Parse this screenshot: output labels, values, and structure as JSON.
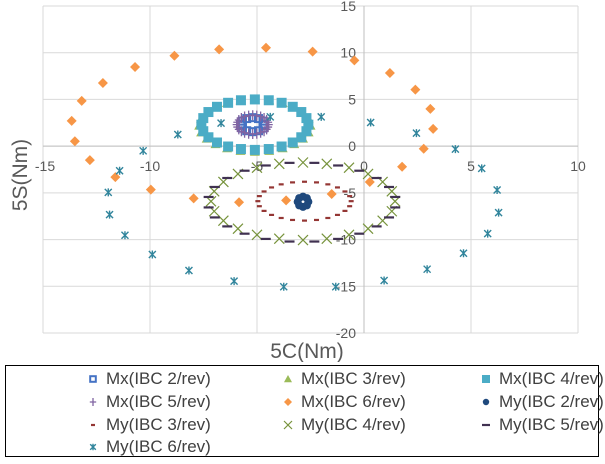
{
  "chart_data": {
    "type": "scatter",
    "xlabel": "5C(Nm)",
    "ylabel": "5S(Nm)",
    "xlim": [
      -15,
      10
    ],
    "ylim": [
      -20,
      15
    ],
    "xticks": [
      "-15",
      "-10",
      "-5",
      "0",
      "5",
      "10"
    ],
    "yticks": [
      "15",
      "10",
      "5",
      "0",
      "-5",
      "-10",
      "-15",
      "-20"
    ],
    "grid": true,
    "legend": "bottom",
    "series": [
      {
        "name": "Mx(IBC 2/rev)",
        "marker": "open-square",
        "color": "#4472c4",
        "x": [
          -4.65,
          -4.72,
          -4.93,
          -5.2,
          -5.48,
          -5.68,
          -5.75,
          -5.68,
          -5.48,
          -5.2,
          -4.93,
          -4.72
        ],
        "y": [
          2.3,
          2.68,
          2.95,
          3.05,
          2.95,
          2.68,
          2.3,
          1.93,
          1.65,
          1.55,
          1.65,
          1.93
        ]
      },
      {
        "name": "Mx(IBC 3/rev)",
        "marker": "triangle",
        "color": "#9bbb59",
        "x": [
          -2.5,
          -2.59,
          -2.85,
          -3.26,
          -3.8,
          -4.43,
          -5.1,
          -5.77,
          -6.4,
          -6.94,
          -7.35,
          -7.61,
          -7.7,
          -7.61,
          -7.35,
          -6.94,
          -6.4,
          -5.77,
          -5.1,
          -4.43,
          -3.8,
          -3.26,
          -2.85,
          -2.59
        ],
        "y": [
          2.2,
          2.93,
          3.6,
          4.18,
          4.62,
          4.9,
          5.0,
          4.9,
          4.62,
          4.18,
          3.6,
          2.93,
          2.2,
          1.47,
          0.8,
          0.22,
          -0.22,
          -0.5,
          -0.6,
          -0.5,
          -0.22,
          0.22,
          0.8,
          1.47
        ]
      },
      {
        "name": "Mx(IBC 4/rev)",
        "marker": "square",
        "color": "#4bacc6",
        "x": [
          -2.6,
          -2.69,
          -2.93,
          -3.33,
          -3.85,
          -4.45,
          -5.1,
          -5.75,
          -6.35,
          -6.87,
          -7.27,
          -7.51,
          -7.6,
          -7.51,
          -7.27,
          -6.87,
          -6.35,
          -5.75,
          -5.1,
          -4.45,
          -3.85,
          -3.33,
          -2.93,
          -2.69
        ],
        "y": [
          2.3,
          3.0,
          3.65,
          4.21,
          4.64,
          4.91,
          5.0,
          4.91,
          4.64,
          4.21,
          3.65,
          3.0,
          2.3,
          1.6,
          0.95,
          0.39,
          -0.04,
          -0.31,
          -0.4,
          -0.31,
          -0.04,
          0.39,
          0.95,
          1.6
        ]
      },
      {
        "name": "Mx(IBC 5/rev)",
        "marker": "plus",
        "color": "#8064a2",
        "x": [
          -4.45,
          -4.48,
          -4.55,
          -4.67,
          -4.83,
          -5.01,
          -5.2,
          -5.39,
          -5.58,
          -5.73,
          -5.85,
          -5.92,
          -5.95,
          -5.92,
          -5.85,
          -5.73,
          -5.58,
          -5.39,
          -5.2,
          -5.01,
          -4.83,
          -4.67,
          -4.55,
          -4.48
        ],
        "y": [
          2.3,
          2.56,
          2.8,
          3.01,
          3.17,
          3.27,
          3.3,
          3.27,
          3.17,
          3.01,
          2.8,
          2.56,
          2.3,
          2.04,
          1.8,
          1.59,
          1.43,
          1.33,
          1.3,
          1.33,
          1.43,
          1.59,
          1.8,
          2.04
        ]
      },
      {
        "name": "Mx(IBC 6/rev)",
        "marker": "diamond",
        "color": "#f79646",
        "x": [
          -4.58,
          -2.4,
          -0.45,
          1.21,
          2.4,
          3.1,
          3.23,
          2.79,
          1.78,
          0.27,
          -1.51,
          -3.64,
          -5.84,
          -7.96,
          -9.96,
          -11.62,
          -12.81,
          -13.51,
          -13.66,
          -13.19,
          -12.2,
          -10.7,
          -8.86,
          -6.77
        ],
        "y": [
          10.53,
          10.11,
          9.18,
          7.83,
          6.05,
          3.99,
          1.85,
          -0.28,
          -2.21,
          -3.84,
          -5.12,
          -5.8,
          -6.01,
          -5.59,
          -4.66,
          -3.31,
          -1.49,
          0.53,
          2.7,
          4.84,
          6.76,
          8.47,
          9.68,
          10.36
        ]
      },
      {
        "name": "My(IBC 2/rev)",
        "marker": "circle",
        "color": "#1f497d",
        "x": [
          -2.6,
          -2.67,
          -2.85,
          -3.03,
          -3.1,
          -3.03,
          -2.85,
          -2.67
        ],
        "y": [
          -5.95,
          -5.56,
          -5.4,
          -5.56,
          -5.95,
          -6.34,
          -6.5,
          -6.34
        ]
      },
      {
        "name": "My(IBC 3/rev)",
        "marker": "short-dash",
        "color": "#943634",
        "x": [
          -0.6,
          -0.67,
          -0.89,
          -1.24,
          -1.69,
          -2.22,
          -2.78,
          -3.34,
          -3.87,
          -4.32,
          -4.67,
          -4.89,
          -4.96,
          -4.89,
          -4.67,
          -4.32,
          -3.87,
          -3.34,
          -2.78,
          -2.22,
          -1.69,
          -1.24,
          -0.89,
          -0.67
        ],
        "y": [
          -5.89,
          -5.35,
          -4.85,
          -4.42,
          -4.09,
          -3.88,
          -3.81,
          -3.88,
          -4.09,
          -4.42,
          -4.85,
          -5.35,
          -5.89,
          -6.43,
          -6.93,
          -7.36,
          -7.69,
          -7.9,
          -7.97,
          -7.9,
          -7.69,
          -7.36,
          -6.93,
          -6.43
        ]
      },
      {
        "name": "My(IBC 4/rev)",
        "marker": "x",
        "color": "#77933c",
        "x": [
          1.45,
          1.3,
          0.87,
          0.19,
          -0.7,
          -1.74,
          -2.85,
          -3.96,
          -5.0,
          -5.89,
          -6.57,
          -7.0,
          -7.15,
          -7.0,
          -6.57,
          -5.89,
          -5.0,
          -3.96,
          -2.85,
          -1.74,
          -0.7,
          0.19,
          0.87,
          1.3
        ],
        "y": [
          -5.9,
          -4.83,
          -3.83,
          -2.97,
          -2.31,
          -1.89,
          -1.75,
          -1.89,
          -2.31,
          -2.97,
          -3.83,
          -4.83,
          -5.9,
          -6.97,
          -7.98,
          -8.83,
          -9.49,
          -9.91,
          -10.05,
          -9.91,
          -9.49,
          -8.83,
          -7.98,
          -6.97
        ]
      },
      {
        "name": "My(IBC 5/rev)",
        "marker": "long-dash",
        "color": "#403151",
        "x": [
          1.46,
          1.17,
          0.59,
          -0.22,
          -1.21,
          -2.32,
          -3.48,
          -4.59,
          -5.58,
          -6.39,
          -6.97,
          -7.26,
          -7.26,
          -6.97,
          -6.39,
          -5.58,
          -4.59,
          -3.48,
          -2.32,
          -1.21,
          -0.22,
          0.59,
          1.17,
          1.46
        ],
        "y": [
          -5.44,
          -4.37,
          -3.41,
          -2.63,
          -2.07,
          -1.79,
          -1.79,
          -2.07,
          -2.63,
          -3.41,
          -4.37,
          -5.44,
          -6.56,
          -7.63,
          -8.59,
          -9.37,
          -9.93,
          -10.21,
          -10.21,
          -9.93,
          -9.37,
          -8.59,
          -7.63,
          -6.56
        ]
      },
      {
        "name": "My(IBC 6/rev)",
        "marker": "asterisk",
        "color": "#31859c",
        "x": [
          -4.38,
          -2.0,
          0.31,
          2.45,
          4.27,
          5.5,
          6.22,
          6.29,
          5.78,
          4.65,
          2.95,
          0.94,
          -1.32,
          -3.75,
          -6.07,
          -8.18,
          -9.89,
          -11.17,
          -11.89,
          -11.95,
          -11.42,
          -10.32,
          -8.7,
          -6.68
        ],
        "y": [
          3.13,
          3.13,
          2.53,
          1.39,
          -0.32,
          -2.38,
          -4.7,
          -7.12,
          -9.36,
          -11.46,
          -13.17,
          -14.38,
          -15.05,
          -15.05,
          -14.45,
          -13.31,
          -11.6,
          -9.54,
          -7.33,
          -4.95,
          -2.63,
          -0.5,
          1.25,
          2.46
        ]
      }
    ]
  }
}
